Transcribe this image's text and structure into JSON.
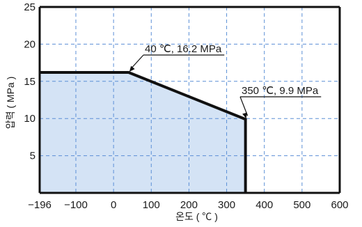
{
  "chart_data": {
    "type": "area",
    "x_ticks": [
      -196,
      -100,
      0,
      100,
      200,
      300,
      400,
      500,
      600
    ],
    "x_tick_labels": [
      "−196",
      "−100",
      "0",
      "100",
      "200",
      "300",
      "400",
      "500",
      "600"
    ],
    "y_ticks": [
      5,
      10,
      15,
      20,
      25
    ],
    "y_tick_labels": [
      "5",
      "10",
      "15",
      "20",
      "25"
    ],
    "xlim": [
      -196,
      600
    ],
    "ylim": [
      0,
      25
    ],
    "xlabel": "온도 ( ℃ )",
    "ylabel": "압력 ( MPa )",
    "grid": true,
    "series": [
      {
        "x": [
          -196,
          40,
          350,
          350
        ],
        "y": [
          16.2,
          16.2,
          9.9,
          0
        ]
      }
    ],
    "annotations": [
      {
        "text": "40 ℃, 16.2 MPa",
        "x": 40,
        "y": 16.2
      },
      {
        "text": "350 ℃, 9.9 MPa",
        "x": 350,
        "y": 9.9
      }
    ],
    "colors": {
      "fill": "#d4e3f5",
      "grid": "#5b8fd6",
      "line": "#111111"
    }
  }
}
